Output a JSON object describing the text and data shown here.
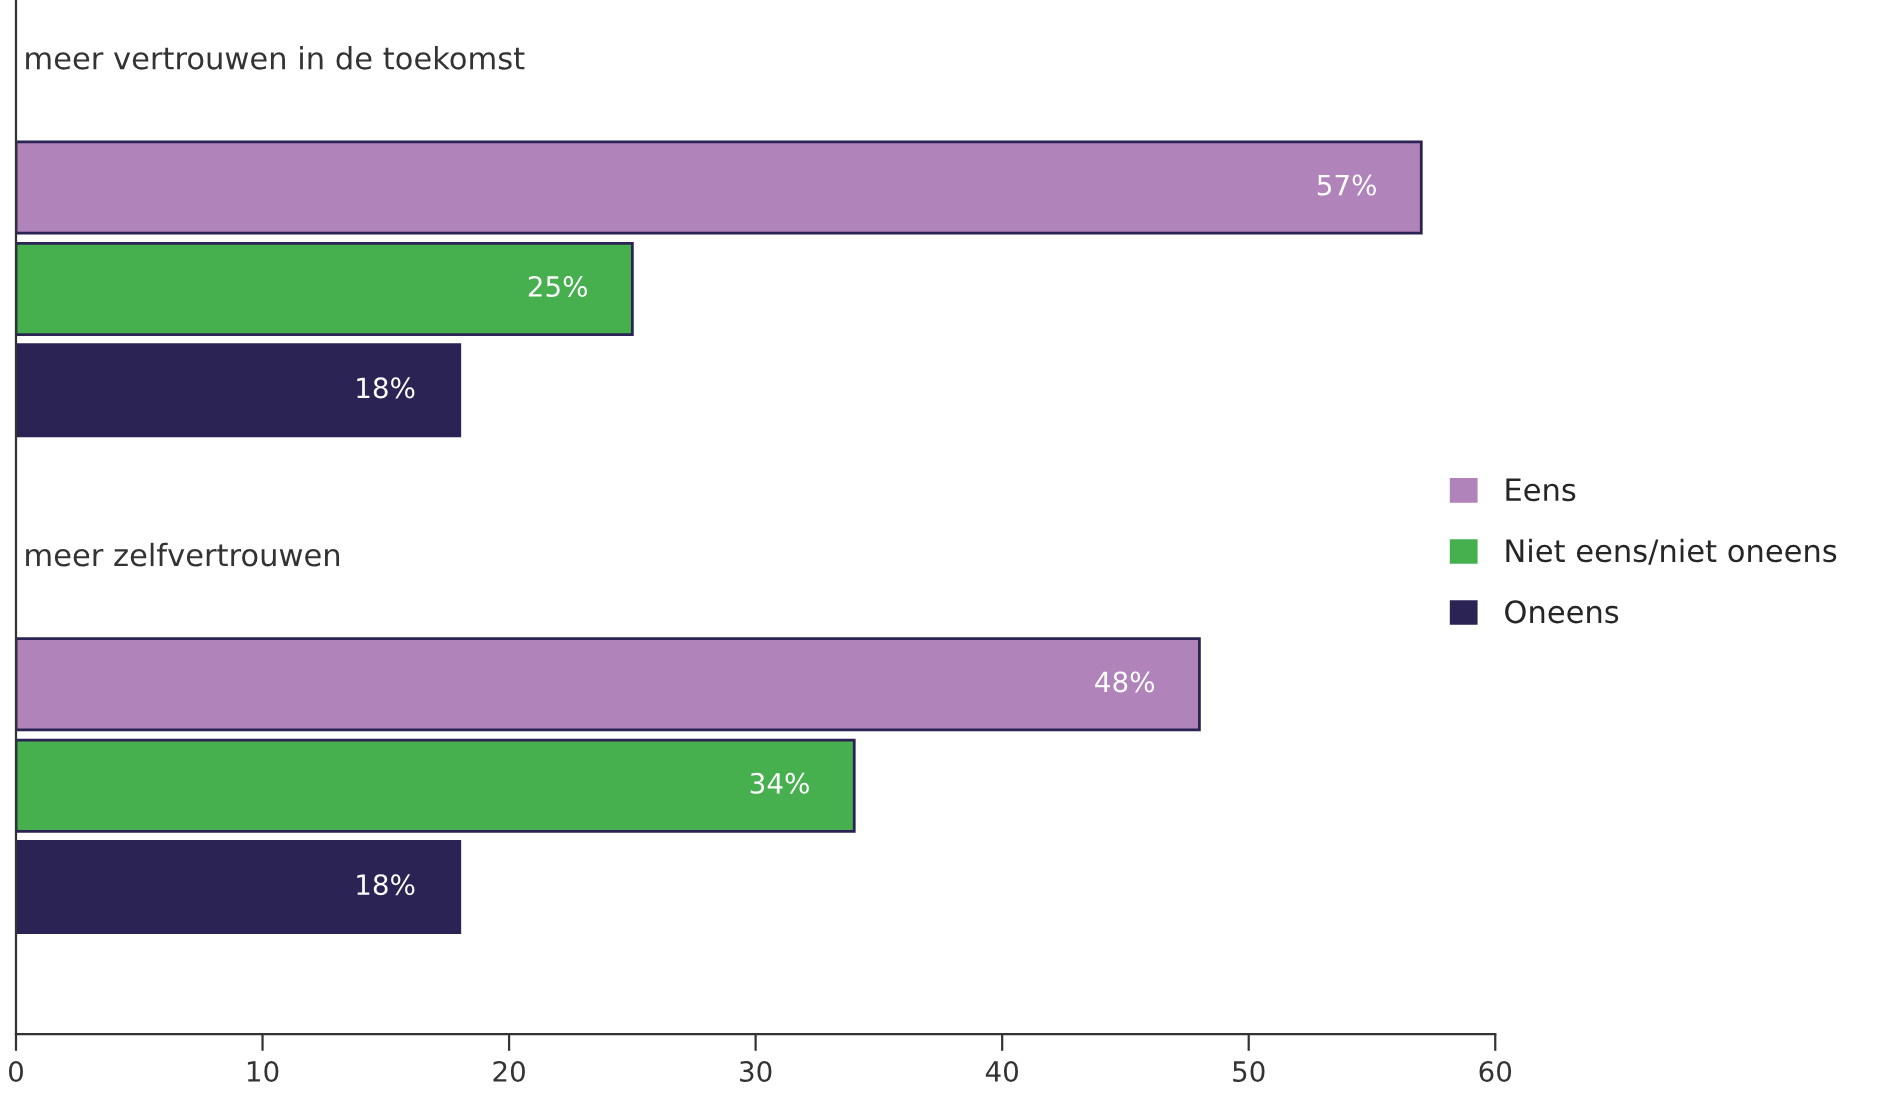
{
  "chart_data": {
    "type": "bar",
    "orientation": "horizontal",
    "categories": [
      "meer vertrouwen in de toekomst",
      "meer zelfvertrouwen"
    ],
    "series": [
      {
        "name": "Eens",
        "color": "#b083ba",
        "values": [
          57,
          48
        ],
        "value_labels": [
          "57%",
          "48%"
        ]
      },
      {
        "name": "Niet eens/niet oneens",
        "color": "#47b04e",
        "values": [
          25,
          34
        ],
        "value_labels": [
          "25%",
          "34%"
        ]
      },
      {
        "name": "Oneens",
        "color": "#2a2354",
        "values": [
          18,
          18
        ],
        "value_labels": [
          "18%",
          "18%"
        ]
      }
    ],
    "xlim": [
      0,
      60
    ],
    "xticks": [
      0,
      10,
      20,
      30,
      40,
      50,
      60
    ],
    "grid": false,
    "legend": "right"
  }
}
